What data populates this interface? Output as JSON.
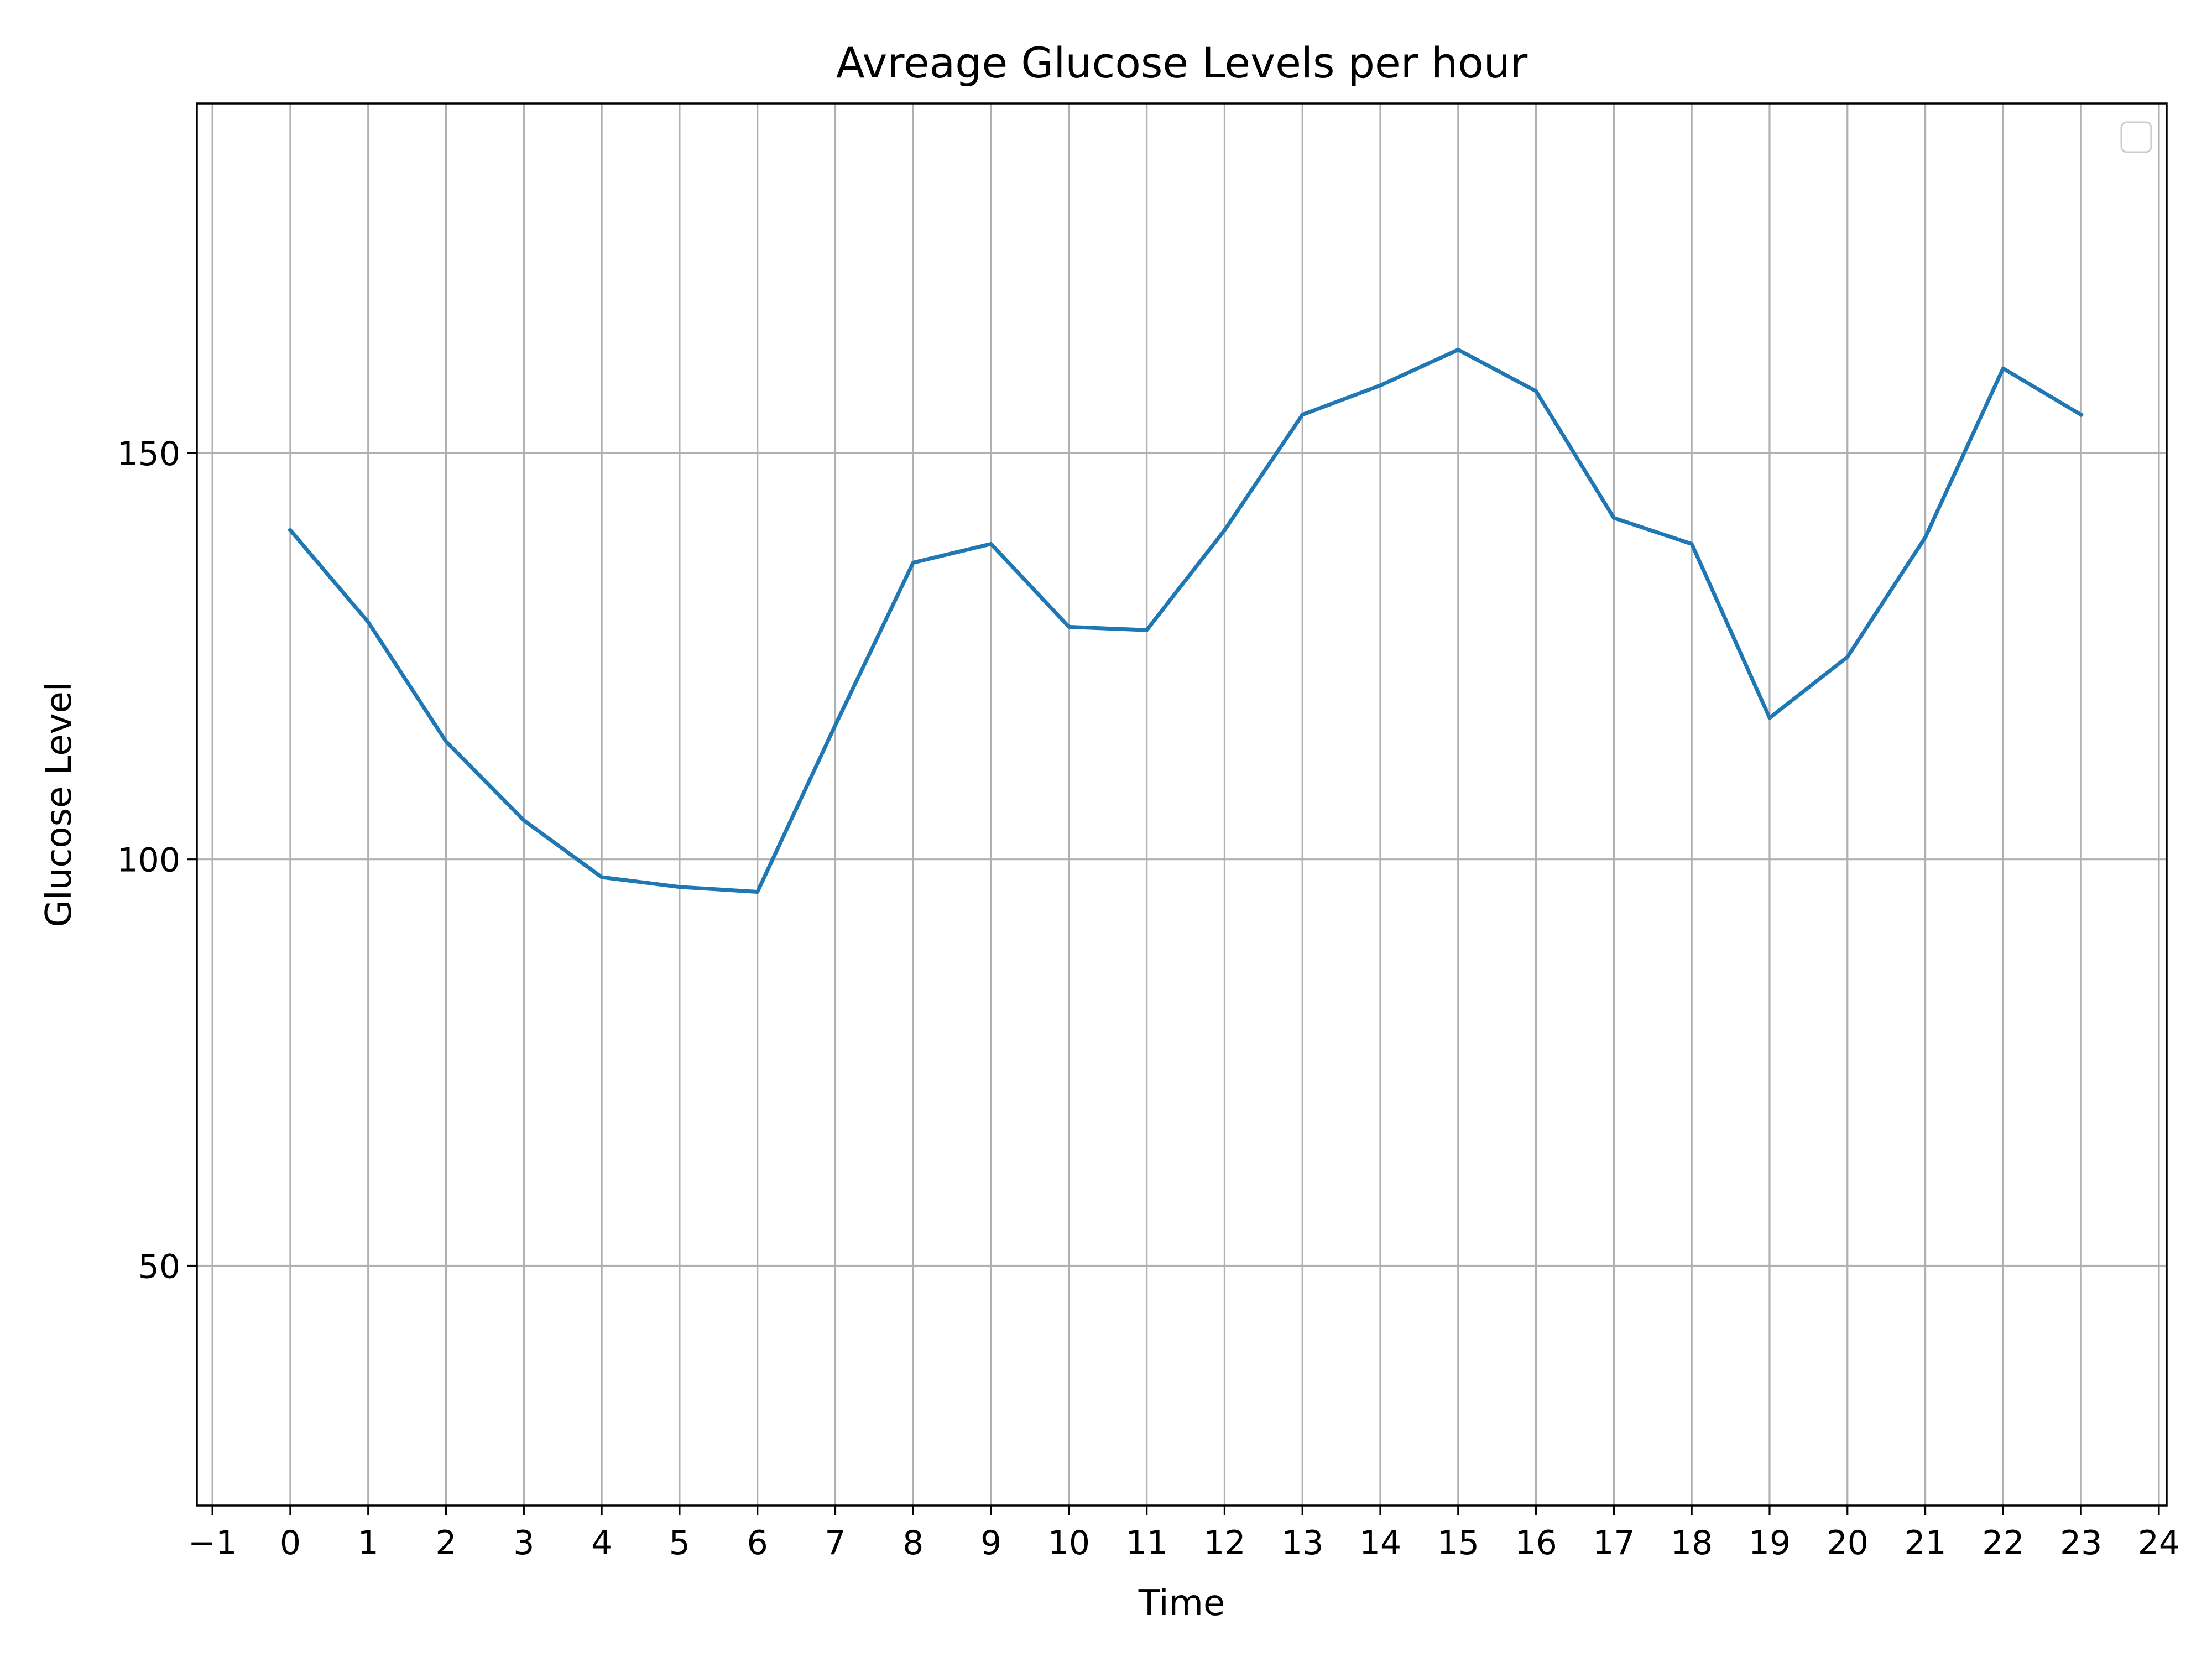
{
  "chart_data": {
    "type": "line",
    "title": "Avreage Glucose Levels per hour",
    "xlabel": "Time",
    "ylabel": "Glucose Level",
    "xlim": [
      -1.2,
      24.1
    ],
    "ylim": [
      20.5,
      193
    ],
    "x_ticks": [
      -1,
      0,
      1,
      2,
      3,
      4,
      5,
      6,
      7,
      8,
      9,
      10,
      11,
      12,
      13,
      14,
      15,
      16,
      17,
      18,
      19,
      20,
      21,
      22,
      23,
      24
    ],
    "x_tick_labels": [
      "−1",
      "0",
      "1",
      "2",
      "3",
      "4",
      "5",
      "6",
      "7",
      "8",
      "9",
      "10",
      "11",
      "12",
      "13",
      "14",
      "15",
      "16",
      "17",
      "18",
      "19",
      "20",
      "21",
      "22",
      "23",
      "24"
    ],
    "y_ticks": [
      50,
      100,
      150
    ],
    "y_tick_labels": [
      "50",
      "100",
      "150"
    ],
    "grid": true,
    "legend": "top-right",
    "series": [
      {
        "color": "#1f77b4",
        "x": [
          0,
          1,
          2,
          3,
          4,
          5,
          6,
          7,
          8,
          9,
          10,
          11,
          12,
          13,
          14,
          15,
          16,
          17,
          18,
          19,
          20,
          21,
          22,
          23
        ],
        "values": [
          140.5,
          129.2,
          114.5,
          104.8,
          97.8,
          96.6,
          96.0,
          116.5,
          136.5,
          138.8,
          128.6,
          128.2,
          140.5,
          154.7,
          158.3,
          162.7,
          157.6,
          142.0,
          138.8,
          117.4,
          124.9,
          139.6,
          160.4,
          154.7
        ]
      }
    ]
  }
}
